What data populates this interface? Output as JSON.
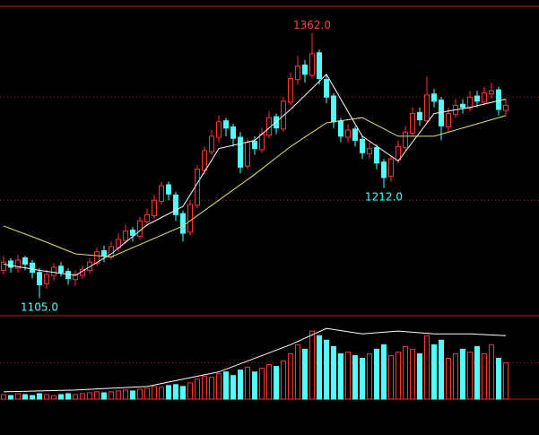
{
  "chart_data": [
    {
      "type": "candlestick",
      "open": [
        1132,
        1141,
        1134,
        1144,
        1139,
        1130,
        1119,
        1127,
        1136,
        1131,
        1123,
        1127,
        1132,
        1139,
        1151,
        1145,
        1154,
        1161,
        1171,
        1165,
        1179,
        1185,
        1199,
        1215,
        1205,
        1187,
        1169,
        1195,
        1229,
        1247,
        1261,
        1277,
        1271,
        1261,
        1233,
        1257,
        1249,
        1263,
        1281,
        1269,
        1295,
        1317,
        1331,
        1321,
        1343,
        1317,
        1301,
        1277,
        1261,
        1269,
        1259,
        1245,
        1251,
        1237,
        1223,
        1239,
        1251,
        1265,
        1285,
        1277,
        1303,
        1297,
        1271,
        1283,
        1293,
        1289,
        1301,
        1295,
        1303,
        1307,
        1287
      ],
      "high": [
        1146,
        1144,
        1147,
        1146,
        1142,
        1134,
        1132,
        1139,
        1140,
        1134,
        1132,
        1137,
        1144,
        1154,
        1156,
        1160,
        1168,
        1176,
        1174,
        1184,
        1192,
        1205,
        1218,
        1218,
        1208,
        1190,
        1200,
        1234,
        1252,
        1268,
        1282,
        1280,
        1274,
        1266,
        1260,
        1262,
        1270,
        1286,
        1284,
        1300,
        1324,
        1340,
        1336,
        1362,
        1346,
        1322,
        1304,
        1280,
        1274,
        1272,
        1262,
        1256,
        1254,
        1240,
        1244,
        1258,
        1272,
        1290,
        1290,
        1320,
        1308,
        1300,
        1290,
        1298,
        1298,
        1306,
        1306,
        1310,
        1314,
        1310,
        1298
      ],
      "low": [
        1128,
        1130,
        1130,
        1132,
        1124,
        1105,
        1114,
        1122,
        1126,
        1118,
        1117,
        1124,
        1129,
        1136,
        1140,
        1142,
        1150,
        1158,
        1160,
        1162,
        1175,
        1182,
        1196,
        1200,
        1180,
        1160,
        1166,
        1192,
        1225,
        1244,
        1256,
        1262,
        1252,
        1226,
        1230,
        1244,
        1246,
        1260,
        1264,
        1266,
        1292,
        1312,
        1314,
        1318,
        1312,
        1294,
        1270,
        1256,
        1256,
        1252,
        1240,
        1240,
        1230,
        1212,
        1218,
        1236,
        1248,
        1262,
        1272,
        1274,
        1290,
        1258,
        1266,
        1280,
        1284,
        1286,
        1290,
        1292,
        1298,
        1282,
        1282
      ],
      "close": [
        1140,
        1135,
        1142,
        1138,
        1130,
        1118,
        1128,
        1135,
        1130,
        1124,
        1128,
        1133,
        1140,
        1150,
        1146,
        1155,
        1162,
        1170,
        1166,
        1180,
        1186,
        1200,
        1214,
        1206,
        1186,
        1168,
        1196,
        1230,
        1248,
        1262,
        1276,
        1270,
        1260,
        1232,
        1256,
        1250,
        1264,
        1280,
        1270,
        1296,
        1318,
        1330,
        1322,
        1342,
        1318,
        1300,
        1276,
        1262,
        1268,
        1258,
        1246,
        1250,
        1236,
        1222,
        1240,
        1252,
        1266,
        1284,
        1278,
        1302,
        1296,
        1272,
        1284,
        1292,
        1290,
        1300,
        1296,
        1304,
        1306,
        1288,
        1292
      ],
      "up_color": "#ff3232",
      "down_color": "#54fcfc",
      "ylim": [
        1088,
        1388
      ],
      "yticks": [
        1200,
        1300
      ],
      "grid": true,
      "lines": [
        {
          "color": "#ffffff",
          "x": [
            0,
            5,
            10,
            15,
            20,
            25,
            30,
            35,
            40,
            45,
            50,
            55,
            60,
            65,
            70
          ],
          "values": [
            1138,
            1132,
            1127,
            1148,
            1176,
            1194,
            1250,
            1258,
            1288,
            1322,
            1262,
            1238,
            1284,
            1290,
            1298
          ]
        },
        {
          "color": "#e8e070",
          "x": [
            0,
            5,
            10,
            15,
            20,
            25,
            30,
            35,
            40,
            45,
            50,
            55,
            60,
            65,
            70
          ],
          "values": [
            1175,
            1162,
            1148,
            1145,
            1160,
            1175,
            1200,
            1225,
            1252,
            1275,
            1280,
            1262,
            1262,
            1272,
            1282
          ]
        }
      ],
      "annotations": [
        {
          "value": 1362,
          "label": "1362.0",
          "color": "#ff4040"
        },
        {
          "value": 1212,
          "label": "1212.0",
          "color": "#54fcfc"
        },
        {
          "value": 1105,
          "label": "1105.0",
          "color": "#54fcfc"
        }
      ]
    },
    {
      "type": "volume",
      "values": [
        5,
        4,
        6,
        5,
        4,
        6,
        5,
        4,
        5,
        6,
        5,
        6,
        7,
        8,
        7,
        8,
        9,
        10,
        9,
        11,
        12,
        14,
        13,
        15,
        16,
        14,
        18,
        22,
        25,
        24,
        28,
        30,
        26,
        32,
        35,
        30,
        34,
        38,
        36,
        42,
        50,
        60,
        55,
        75,
        70,
        65,
        58,
        50,
        52,
        48,
        45,
        50,
        55,
        60,
        48,
        52,
        58,
        55,
        50,
        70,
        60,
        65,
        45,
        50,
        55,
        52,
        58,
        50,
        60,
        45,
        40
      ],
      "ylim": [
        0,
        92
      ],
      "yticks": [
        40
      ],
      "grid": true,
      "lines": [
        {
          "color": "#ffffff",
          "x": [
            0,
            10,
            20,
            30,
            40,
            45,
            50,
            55,
            60,
            65,
            70
          ],
          "values": [
            8,
            10,
            14,
            30,
            60,
            78,
            72,
            75,
            72,
            72,
            70
          ]
        }
      ]
    }
  ]
}
